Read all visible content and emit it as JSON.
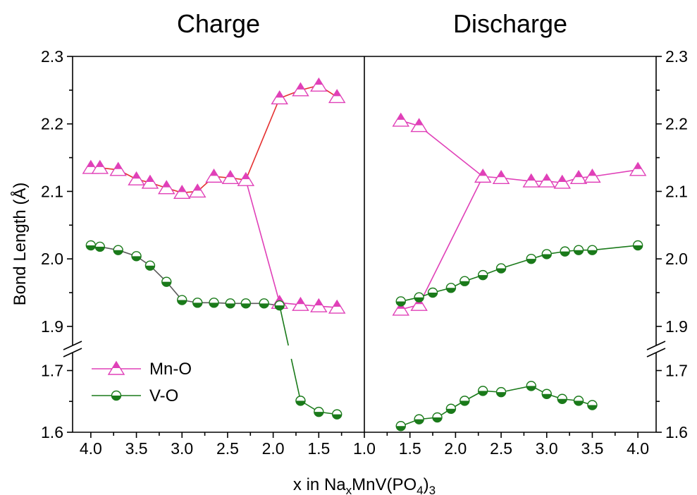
{
  "chart_data": {
    "type": "line",
    "ylabel": "Bond Length (Å)",
    "xlabel": {
      "prefix": "x in Na",
      "sub": "x",
      "mid": "MnV(PO",
      "sub2": "4",
      "suffix": ")",
      "sub3": "3"
    },
    "ylim_upper": [
      1.88,
      2.3
    ],
    "ylim_lower": [
      1.6,
      1.72
    ],
    "yticks_upper": [
      "1.9",
      "2.0",
      "2.1",
      "2.2",
      "2.3"
    ],
    "yticks_lower": [
      "1.6",
      "1.7"
    ],
    "legend": {
      "position": "bottom-left",
      "entries": [
        "Mn-O",
        "V-O"
      ]
    },
    "colors": {
      "mn_marker": "#e040b8",
      "charge_mn_line": "#e53030",
      "v_marker": "#1a7a1a",
      "charge_v_line": "#5a5a5a",
      "discharge_v_line": "#1a7a1a"
    },
    "panels": [
      {
        "title": "Charge",
        "xlim": [
          4.2,
          1.0
        ],
        "xticks": [
          "4.0",
          "3.5",
          "3.0",
          "2.5",
          "2.0",
          "1.5",
          "1.0"
        ],
        "series": [
          {
            "name": "Mn-O",
            "x": [
              4.0,
              3.9,
              3.7,
              3.5,
              3.35,
              3.17,
              3.0,
              2.83,
              2.65,
              2.47,
              2.3,
              1.93,
              1.7,
              1.5,
              1.3
            ],
            "y": [
              2.135,
              2.135,
              2.132,
              2.118,
              2.113,
              2.105,
              2.098,
              2.1,
              2.122,
              2.12,
              2.117,
              2.238,
              2.25,
              2.257,
              2.24
            ]
          },
          {
            "name": "Mn-O",
            "x": [
              2.3,
              1.93,
              1.7,
              1.5,
              1.3
            ],
            "y": [
              2.117,
              1.935,
              1.932,
              1.93,
              1.928
            ]
          },
          {
            "name": "V-O",
            "x": [
              4.0,
              3.9,
              3.7,
              3.5,
              3.35,
              3.17,
              3.0,
              2.83,
              2.65,
              2.47,
              2.3,
              2.1,
              1.93
            ],
            "y": [
              2.02,
              2.018,
              2.013,
              2.004,
              1.99,
              1.966,
              1.939,
              1.935,
              1.935,
              1.934,
              1.934,
              1.934,
              1.931
            ]
          },
          {
            "name": "V-O",
            "x": [
              1.93,
              1.7,
              1.5,
              1.3
            ],
            "y": [
              1.931,
              1.651,
              1.633,
              1.629
            ]
          }
        ]
      },
      {
        "title": "Discharge",
        "xlim": [
          1.0,
          4.2
        ],
        "xticks": [
          "1.5",
          "2.0",
          "2.5",
          "3.0",
          "3.5",
          "4.0"
        ],
        "series": [
          {
            "name": "Mn-O",
            "x": [
              1.4,
              1.6,
              2.3,
              2.5,
              2.83,
              3.0,
              3.17,
              3.35,
              3.5,
              4.0
            ],
            "y": [
              2.205,
              2.197,
              2.122,
              2.12,
              2.115,
              2.115,
              2.113,
              2.12,
              2.122,
              2.132
            ]
          },
          {
            "name": "Mn-O",
            "x": [
              1.4,
              1.6,
              2.3
            ],
            "y": [
              1.925,
              1.932,
              2.122
            ]
          },
          {
            "name": "V-O",
            "x": [
              1.4,
              1.6,
              1.75,
              1.95,
              2.1,
              2.3,
              2.5,
              2.83,
              3.0,
              3.2,
              3.35,
              3.5,
              4.0
            ],
            "y": [
              1.937,
              1.943,
              1.95,
              1.957,
              1.967,
              1.976,
              1.986,
              2.0,
              2.007,
              2.011,
              2.013,
              2.013,
              2.02
            ]
          },
          {
            "name": "V-O",
            "x": [
              1.4,
              1.6,
              1.8,
              1.95,
              2.1,
              2.3,
              2.5,
              2.83,
              3.0,
              3.17,
              3.35,
              3.5
            ],
            "y": [
              1.61,
              1.621,
              1.624,
              1.638,
              1.651,
              1.667,
              1.665,
              1.675,
              1.662,
              1.654,
              1.651,
              1.644
            ]
          }
        ]
      }
    ]
  }
}
